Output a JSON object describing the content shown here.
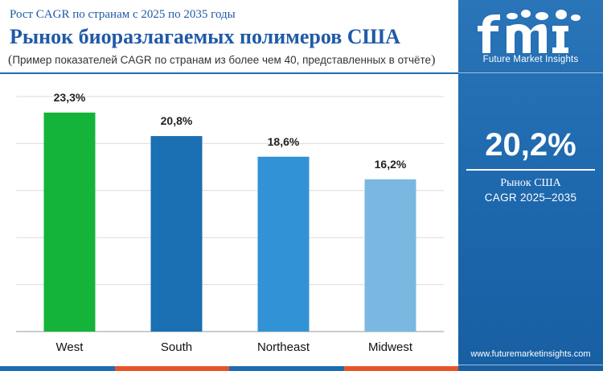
{
  "header": {
    "subtitle": "Рост CAGR по странам с 2025 по 2035 годы",
    "title": "Рынок биоразлагаемых полимеров США",
    "note_open": "(",
    "note": "Пример показателей CAGR по странам из более чем 40, представленных в отчёте",
    "note_close": ")"
  },
  "sidebar": {
    "brand_tagline": "Future Market Insights",
    "highlight_value": "20,2%",
    "highlight_label_1": "Рынок США",
    "highlight_label_2": "CAGR 2025–2035",
    "website": "www.futuremarketinsights.com",
    "logo_icon": "fmi-logo-icon"
  },
  "chart_data": {
    "type": "bar",
    "categories": [
      "West",
      "South",
      "Northeast",
      "Midwest"
    ],
    "values": [
      23.3,
      20.8,
      18.6,
      16.2
    ],
    "value_labels": [
      "23,3%",
      "20,8%",
      "18,6%",
      "16,2%"
    ],
    "bar_colors": [
      "#14b43a",
      "#1b6fb3",
      "#3192d6",
      "#7bb8e1"
    ],
    "ylim": [
      0,
      25
    ],
    "grid": true,
    "title": "",
    "xlabel": "",
    "ylabel": ""
  },
  "colors": {
    "title_blue": "#1f5aa6",
    "sidebar_blue": "#1d67ad",
    "bottom_stripes": [
      "#1b6cb3",
      "#e8542a",
      "#1b6cb3",
      "#e8542a"
    ]
  }
}
